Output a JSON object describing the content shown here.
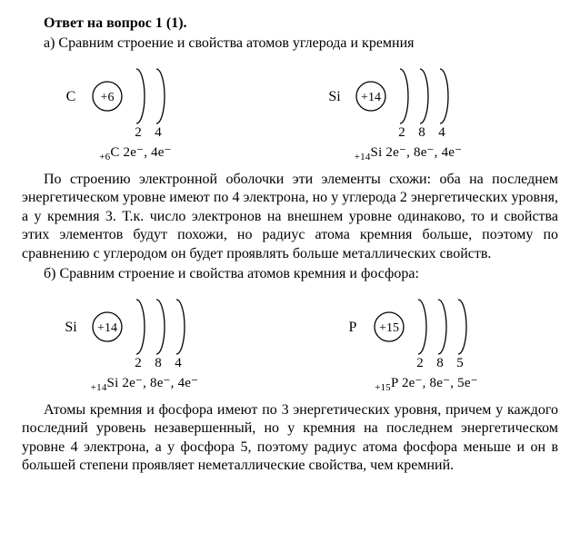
{
  "title": "Ответ на вопрос 1 (1).",
  "sectionA": "а) Сравним строение и свойства атомов углерода и кремния",
  "sectionB": "б) Сравним строение и свойства атомов кремния и фосфора:",
  "paragraph1": "По строению электронной оболочки эти элементы схожи: оба на последнем энергетическом уровне имеют по 4 электрона, но у углерода 2 энергетических уровня, а у кремния 3. Т.к. число электронов на внешнем уровне одинаково, то и свойства этих элементов будут похожи, но радиус атома кремния больше, поэтому по сравнению с углеродом он будет проявлять больше металлических свойств.",
  "paragraph2": "Атомы кремния и фосфора имеют по 3 энергетических уровня, причем у каждого последний уровень незавершенный, но у кремния на последнем энергетическом уровне 4 электрона, а у фосфора 5, поэтому радиус атома фосфора меньше и он в большей степени проявляет неметаллические свойства, чем кремний.",
  "atoms": {
    "carbon1": {
      "symbol": "C",
      "nucleus": "+6",
      "shells": [
        "2",
        "4"
      ],
      "config_pre": "+6",
      "config_sym": "C",
      "config_body": " 2e⁻, 4e⁻"
    },
    "silicon1": {
      "symbol": "Si",
      "nucleus": "+14",
      "shells": [
        "2",
        "8",
        "4"
      ],
      "config_pre": "+14",
      "config_sym": "Si",
      "config_body": " 2e⁻, 8e⁻, 4e⁻"
    },
    "silicon2": {
      "symbol": "Si",
      "nucleus": "+14",
      "shells": [
        "2",
        "8",
        "4"
      ],
      "config_pre": "+14",
      "config_sym": "Si",
      "config_body": " 2e⁻, 8e⁻, 4e⁻"
    },
    "phosphorus": {
      "symbol": "P",
      "nucleus": "+15",
      "shells": [
        "2",
        "8",
        "5"
      ],
      "config_pre": "+15",
      "config_sym": "P",
      "config_body": " 2e⁻, 8e⁻, 5e⁻"
    }
  },
  "style": {
    "stroke": "#000000",
    "strokeWidth": 1.3,
    "nucleusRadius": 16,
    "shellArc": {
      "ryBase": 30,
      "rx": 9,
      "gap": 22
    },
    "font": {
      "symbol": 16,
      "nucleus": 14,
      "shellNum": 15
    }
  }
}
